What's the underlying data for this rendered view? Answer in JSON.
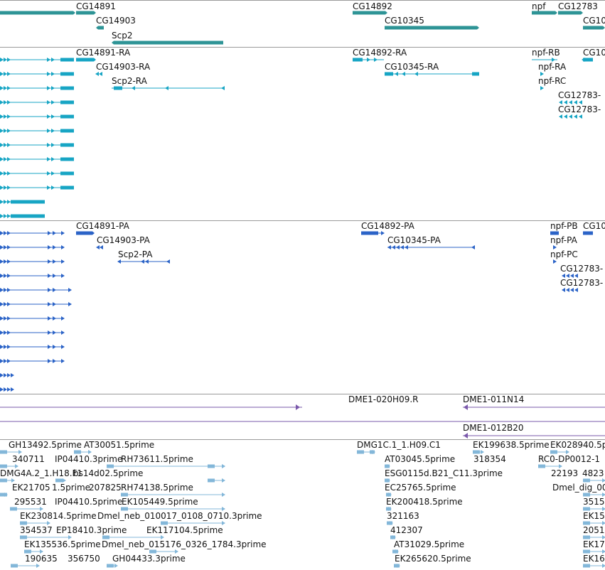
{
  "colors": {
    "gene_track": "#2e9496",
    "transcript_track": "#17a5c4",
    "protein_track": "#2b63c7",
    "clone_track": "#7a58ab",
    "est_track": "#83b7d9"
  },
  "tracks": {
    "genes": {
      "labels": [
        "CG14891",
        "CG14903",
        "Scp2",
        "CG14892",
        "CG10345",
        "npf",
        "CG12783",
        "CG10"
      ]
    },
    "transcripts": {
      "labels": [
        "CG14891-RA",
        "CG14903-RA",
        "Scp2-RA",
        "CG14892-RA",
        "CG10345-RA",
        "npf-RB",
        "npf-RA",
        "npf-RC",
        "CG12783-",
        "CG12783-",
        "CG10"
      ]
    },
    "proteins": {
      "labels": [
        "CG14891-PA",
        "CG14903-PA",
        "Scp2-PA",
        "CG14892-PA",
        "CG10345-PA",
        "npf-PB",
        "npf-PA",
        "npf-PC",
        "CG12783-",
        "CG12783-",
        "CG10"
      ]
    },
    "clones": {
      "labels": [
        "DME1-020H09.R",
        "DME1-011N14",
        "DME1-012B20"
      ]
    },
    "ests": {
      "labels": [
        "GH13492.5prime",
        "AT30051.5prime",
        "340711",
        "IP04410.3prime",
        "RH73611.5prime",
        "DMG4A.2_1.H18.F1",
        "bs14d02.5prime",
        "EK21705",
        "1.5prime",
        "207825",
        "RH74138.5prime",
        "295531",
        "IP04410.5prime",
        "EK105449.5prime",
        "EK230814.5prime",
        "Dmel_neb_010017_0108_0710.3prime",
        "354537",
        "EP18410.3prime",
        "EK117104.5prime",
        "EK135536.5prime",
        "Dmel_neb_015176_0326_1784.3prime",
        "190635",
        "356750",
        "GH04433.3prime",
        "DMG1C.1_1.H09.C1",
        "AT03045.5prime",
        "ESG0115d.B21_C11.3prime",
        "EC25765.5prime",
        "EK200418.5prime",
        "321163",
        "412307",
        "AT31029.5prime",
        "EK265620.5prime",
        "EK199638.5prime",
        "318354",
        "EK028940.5p",
        "RC0-DP0012-1",
        "22193",
        "4823",
        "Dmel_dig_00",
        "3515",
        "EK15",
        "2051",
        "EK17",
        "EK16"
      ]
    }
  }
}
